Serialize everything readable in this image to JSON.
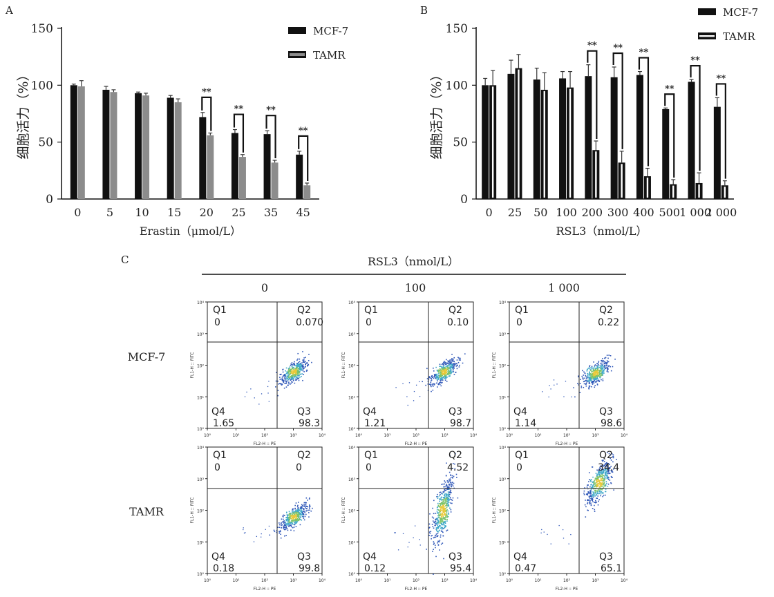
{
  "chart_data": [
    {
      "panel": "A",
      "type": "bar",
      "ylabel": "细胞活力（%）",
      "xlabel": "Erastin（μmol/L）",
      "ylim": [
        0,
        150
      ],
      "yticks": [
        0,
        50,
        100,
        150
      ],
      "categories": [
        "0",
        "5",
        "10",
        "15",
        "20",
        "25",
        "35",
        "45"
      ],
      "series": [
        {
          "name": "MCF-7",
          "color": "#111111",
          "values": [
            100,
            96,
            93,
            89,
            72,
            58,
            57,
            39
          ],
          "errors": [
            1,
            3,
            1,
            2,
            4,
            3,
            3,
            3
          ]
        },
        {
          "name": "TAMR",
          "color": "#8c8c8c",
          "values": [
            99,
            94,
            91,
            85,
            56,
            37,
            32,
            12
          ],
          "errors": [
            5,
            2,
            2,
            3,
            2,
            2,
            2,
            2
          ]
        }
      ],
      "significance": [
        {
          "index": 4,
          "label": "**"
        },
        {
          "index": 5,
          "label": "**"
        },
        {
          "index": 6,
          "label": "**"
        },
        {
          "index": 7,
          "label": "**"
        }
      ]
    },
    {
      "panel": "B",
      "type": "bar",
      "ylabel": "细胞活力（%）",
      "xlabel": "RSL3（nmol/L）",
      "ylim": [
        0,
        150
      ],
      "yticks": [
        0,
        50,
        100,
        150
      ],
      "categories": [
        "0",
        "25",
        "50",
        "100",
        "200",
        "300",
        "400",
        "500",
        "1 000",
        "2 000"
      ],
      "series": [
        {
          "name": "MCF-7",
          "color": "#111111",
          "values": [
            100,
            110,
            105,
            106,
            108,
            107,
            109,
            79,
            103,
            81
          ],
          "errors": [
            6,
            12,
            10,
            6,
            10,
            9,
            3,
            1,
            2,
            8
          ]
        },
        {
          "name": "TAMR",
          "color": "#111111",
          "values": [
            100,
            115,
            96,
            98,
            43,
            32,
            20,
            13,
            14,
            12
          ],
          "errors": [
            13,
            12,
            15,
            14,
            8,
            10,
            7,
            4,
            9,
            4
          ]
        }
      ],
      "significance": [
        {
          "index": 4,
          "label": "**"
        },
        {
          "index": 5,
          "label": "**"
        },
        {
          "index": 6,
          "label": "**"
        },
        {
          "index": 7,
          "label": "**"
        },
        {
          "index": 8,
          "label": "**"
        },
        {
          "index": 9,
          "label": "**"
        }
      ]
    },
    {
      "panel": "C",
      "type": "scatter",
      "header": "RSL3（nmol/L）",
      "x_axis_label": "FL2-H :: PE",
      "y_axis_label": "FL1-H :: FITC",
      "axis_ticks": [
        "10⁰",
        "10¹",
        "10²",
        "10³",
        "10⁴"
      ],
      "columns": [
        "0",
        "100",
        "1 000"
      ],
      "rows": [
        "MCF-7",
        "TAMR"
      ],
      "plots": [
        {
          "row": 0,
          "col": 0,
          "q1": "0",
          "q2": "0.070",
          "q3": "98.3",
          "q4": "1.65"
        },
        {
          "row": 0,
          "col": 1,
          "q1": "0",
          "q2": "0.10",
          "q3": "98.7",
          "q4": "1.21"
        },
        {
          "row": 0,
          "col": 2,
          "q1": "0",
          "q2": "0.22",
          "q3": "98.6",
          "q4": "1.14"
        },
        {
          "row": 1,
          "col": 0,
          "q1": "0",
          "q2": "0",
          "q3": "99.8",
          "q4": "0.18"
        },
        {
          "row": 1,
          "col": 1,
          "q1": "0",
          "q2": "4.52",
          "q3": "95.4",
          "q4": "0.12"
        },
        {
          "row": 1,
          "col": 2,
          "q1": "0",
          "q2": "34.4",
          "q3": "65.1",
          "q4": "0.47"
        }
      ]
    }
  ],
  "labels": {
    "panel_a": "A",
    "panel_b": "B",
    "panel_c": "C",
    "legend_mcf7": "MCF-7",
    "legend_tamr": "TAMR",
    "q1": "Q1",
    "q2": "Q2",
    "q3": "Q3",
    "q4": "Q4"
  },
  "colors": {
    "q2_text": "#e23b3b",
    "grid_line": "#222222"
  }
}
